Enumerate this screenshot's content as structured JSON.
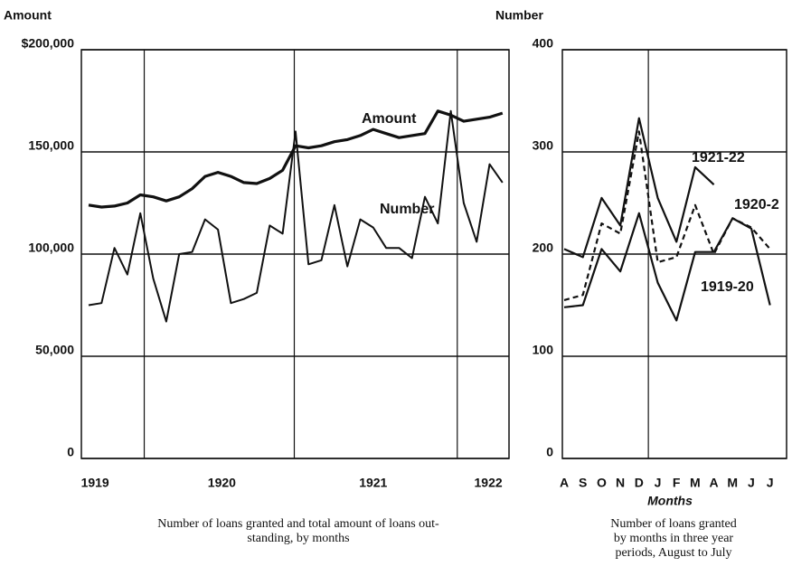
{
  "chart_data": [
    {
      "type": "line",
      "ylabel": "Amount",
      "x": [
        0,
        1,
        2,
        3,
        4,
        5,
        6,
        7,
        8,
        9,
        10,
        11,
        12,
        13,
        14,
        15,
        16,
        17,
        18,
        19,
        20,
        21,
        22,
        23,
        24,
        25,
        26,
        27,
        28,
        29,
        30,
        31,
        32
      ],
      "series": [
        {
          "name": "Amount",
          "color": "#111111",
          "dash": false,
          "width": 3.2,
          "values": [
            124000,
            123000,
            123500,
            125000,
            129000,
            128000,
            126000,
            128000,
            132000,
            138000,
            140000,
            138000,
            135000,
            134500,
            137000,
            141000,
            153000,
            152000,
            153000,
            155000,
            156000,
            158000,
            161000,
            159000,
            157000,
            158000,
            159000,
            170000,
            168000,
            165000,
            166000,
            167000,
            169000
          ]
        },
        {
          "name": "Number",
          "color": "#111111",
          "dash": false,
          "width": 2,
          "values": [
            75000,
            76000,
            103000,
            90000,
            120000,
            88000,
            67000,
            100000,
            101000,
            117000,
            112000,
            76000,
            78000,
            81000,
            114000,
            110000,
            160000,
            95000,
            97000,
            124000,
            94000,
            117000,
            113000,
            103000,
            103000,
            98000,
            128000,
            115000,
            170000,
            125000,
            106000,
            144000,
            135000
          ]
        }
      ],
      "xlim": [
        -0.56,
        32.5
      ],
      "xticks": [
        {
          "value": 0.5,
          "label": "1919"
        },
        {
          "value": 10.3,
          "label": "1920"
        },
        {
          "value": 22.0,
          "label": "1921"
        },
        {
          "value": 30.9,
          "label": "1922"
        }
      ],
      "xgrid": [
        4.3,
        15.9,
        28.5
      ],
      "ylim": [
        0,
        200000
      ],
      "yticks": [
        0,
        {
          "value": 50000,
          "label": "50,000"
        },
        {
          "value": 100000,
          "label": "100,000"
        },
        {
          "value": 150000,
          "label": "150,000"
        },
        {
          "value": 200000,
          "label": "$200,000"
        }
      ],
      "grid": true,
      "caption": [
        "Number of loans granted and total amount of loans out-",
        "standing, by months"
      ]
    },
    {
      "type": "line",
      "ylabel": "Number",
      "xlabel": "Months",
      "categories": [
        "A",
        "S",
        "O",
        "N",
        "D",
        "J",
        "F",
        "M",
        "A",
        "M",
        "J",
        "J"
      ],
      "series": [
        {
          "name": "1921-22",
          "color": "#111111",
          "dash": false,
          "width": 2.2,
          "values": [
            205,
            197,
            255,
            228,
            333,
            255,
            212,
            285,
            268,
            null,
            null,
            null
          ]
        },
        {
          "name": "1920-2",
          "color": "#111111",
          "dash": true,
          "width": 2.2,
          "values": [
            155,
            160,
            230,
            220,
            320,
            192,
            197,
            248,
            200,
            235,
            226,
            205
          ]
        },
        {
          "name": "1919-20",
          "color": "#111111",
          "dash": false,
          "width": 2.2,
          "values": [
            148,
            150,
            205,
            183,
            240,
            172,
            135,
            202,
            202,
            235,
            225,
            150
          ]
        }
      ],
      "xgrid_after": 4,
      "ylim": [
        0,
        400
      ],
      "yticks": [
        0,
        100,
        200,
        300,
        400
      ],
      "grid": true,
      "caption": [
        "Number of loans granted",
        "by months in three year",
        "periods, August to July"
      ]
    }
  ]
}
